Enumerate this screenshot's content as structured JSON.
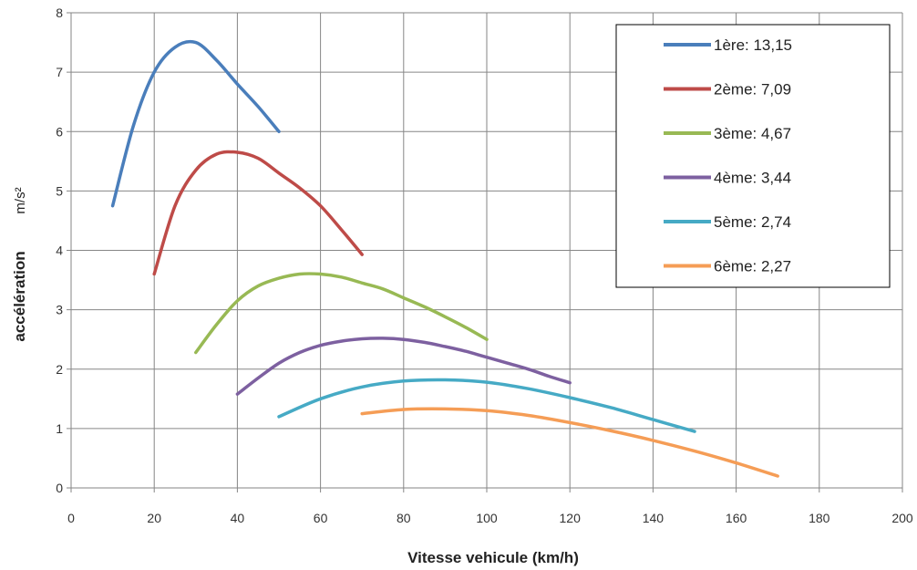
{
  "chart_data": {
    "type": "line",
    "xlabel": "Vitesse vehicule (km/h)",
    "ylabel": "accélération",
    "yunit": "m/s²",
    "xlim": [
      0,
      200
    ],
    "ylim": [
      0,
      8
    ],
    "xticks": [
      0,
      20,
      40,
      60,
      80,
      100,
      120,
      140,
      160,
      180,
      200
    ],
    "yticks": [
      0,
      1,
      2,
      3,
      4,
      5,
      6,
      7,
      8
    ],
    "grid": true,
    "legend_position": "top-right",
    "series": [
      {
        "name": "1ère: 13,15",
        "color": "#4a7ebb",
        "points": [
          [
            10,
            4.75
          ],
          [
            15,
            6.1
          ],
          [
            20,
            7.0
          ],
          [
            25,
            7.42
          ],
          [
            30,
            7.5
          ],
          [
            35,
            7.2
          ],
          [
            40,
            6.8
          ],
          [
            45,
            6.42
          ],
          [
            50,
            6.0
          ]
        ]
      },
      {
        "name": "2ème: 7,09",
        "color": "#be4b48",
        "points": [
          [
            20,
            3.6
          ],
          [
            25,
            4.75
          ],
          [
            30,
            5.35
          ],
          [
            35,
            5.62
          ],
          [
            40,
            5.65
          ],
          [
            45,
            5.55
          ],
          [
            50,
            5.3
          ],
          [
            55,
            5.05
          ],
          [
            60,
            4.75
          ],
          [
            65,
            4.35
          ],
          [
            70,
            3.93
          ]
        ]
      },
      {
        "name": "3ème: 4,67",
        "color": "#98b954",
        "points": [
          [
            30,
            2.28
          ],
          [
            35,
            2.75
          ],
          [
            40,
            3.15
          ],
          [
            45,
            3.4
          ],
          [
            50,
            3.53
          ],
          [
            55,
            3.6
          ],
          [
            60,
            3.6
          ],
          [
            65,
            3.55
          ],
          [
            70,
            3.45
          ],
          [
            75,
            3.35
          ],
          [
            80,
            3.2
          ],
          [
            85,
            3.05
          ],
          [
            90,
            2.88
          ],
          [
            95,
            2.7
          ],
          [
            100,
            2.5
          ]
        ]
      },
      {
        "name": "4ème: 3,44",
        "color": "#7d60a0",
        "points": [
          [
            40,
            1.58
          ],
          [
            45,
            1.85
          ],
          [
            50,
            2.1
          ],
          [
            55,
            2.28
          ],
          [
            60,
            2.4
          ],
          [
            65,
            2.47
          ],
          [
            70,
            2.51
          ],
          [
            75,
            2.52
          ],
          [
            80,
            2.5
          ],
          [
            85,
            2.45
          ],
          [
            90,
            2.38
          ],
          [
            95,
            2.3
          ],
          [
            100,
            2.2
          ],
          [
            105,
            2.1
          ],
          [
            110,
            2.0
          ],
          [
            115,
            1.88
          ],
          [
            120,
            1.77
          ]
        ]
      },
      {
        "name": "5ème: 2,74",
        "color": "#46aac5",
        "points": [
          [
            50,
            1.2
          ],
          [
            60,
            1.5
          ],
          [
            70,
            1.7
          ],
          [
            80,
            1.8
          ],
          [
            90,
            1.82
          ],
          [
            100,
            1.78
          ],
          [
            110,
            1.67
          ],
          [
            120,
            1.52
          ],
          [
            130,
            1.35
          ],
          [
            140,
            1.15
          ],
          [
            150,
            0.95
          ]
        ]
      },
      {
        "name": "6ème: 2,27",
        "color": "#f59d56",
        "points": [
          [
            70,
            1.25
          ],
          [
            80,
            1.32
          ],
          [
            90,
            1.33
          ],
          [
            100,
            1.3
          ],
          [
            110,
            1.22
          ],
          [
            120,
            1.1
          ],
          [
            130,
            0.96
          ],
          [
            140,
            0.8
          ],
          [
            150,
            0.62
          ],
          [
            160,
            0.42
          ],
          [
            170,
            0.2
          ]
        ]
      }
    ]
  }
}
